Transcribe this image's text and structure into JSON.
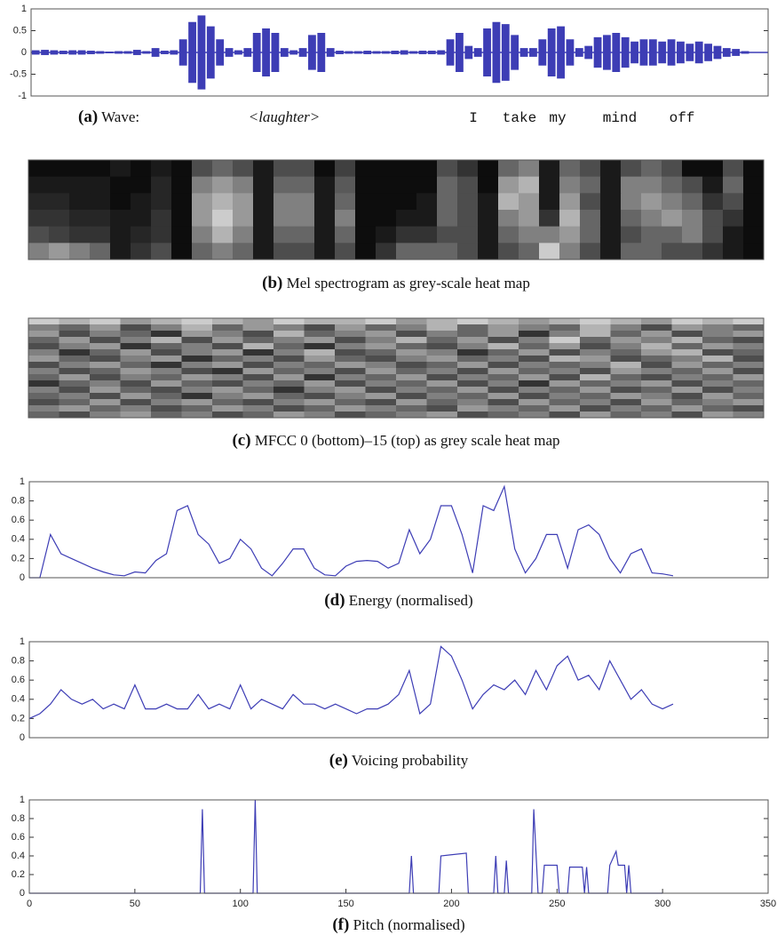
{
  "chart_data": [
    {
      "type": "wave",
      "label": "(a)",
      "title": "Wave:",
      "color": "#3d3db5",
      "ylim": [
        -1,
        1
      ],
      "yticks": [
        -1,
        -0.5,
        0,
        0.5,
        1
      ],
      "annotations": [
        "<laughter>",
        "I",
        "take",
        "my",
        "mind",
        "off"
      ],
      "values": [
        0.05,
        0.06,
        0.05,
        0.04,
        0.05,
        0.05,
        0.04,
        0.03,
        0.02,
        0.03,
        0.03,
        0.06,
        0.03,
        0.1,
        0.04,
        0.05,
        0.3,
        0.7,
        0.85,
        0.6,
        0.3,
        0.1,
        0.05,
        0.1,
        0.45,
        0.55,
        0.45,
        0.1,
        0.05,
        0.1,
        0.4,
        0.45,
        0.1,
        0.04,
        0.03,
        0.03,
        0.04,
        0.03,
        0.03,
        0.04,
        0.05,
        0.03,
        0.04,
        0.04,
        0.05,
        0.3,
        0.45,
        0.15,
        0.1,
        0.55,
        0.7,
        0.65,
        0.4,
        0.1,
        0.1,
        0.3,
        0.55,
        0.6,
        0.3,
        0.1,
        0.15,
        0.35,
        0.4,
        0.45,
        0.35,
        0.25,
        0.3,
        0.3,
        0.25,
        0.3,
        0.25,
        0.2,
        0.25,
        0.2,
        0.15,
        0.1,
        0.08,
        0.03,
        0,
        0
      ]
    },
    {
      "type": "heatmap",
      "label": "(b)",
      "title": "Mel spectrogram as grey-scale heat map",
      "values": [
        [
          0.05,
          0.05,
          0.05,
          0.05,
          0.1,
          0.05,
          0.1,
          0.05,
          0.3,
          0.4,
          0.3,
          0.1,
          0.3,
          0.3,
          0.05,
          0.25,
          0.05,
          0.05,
          0.05,
          0.05,
          0.3,
          0.2,
          0.05,
          0.4,
          0.5,
          0.1,
          0.4,
          0.3,
          0.1,
          0.3,
          0.4,
          0.3,
          0.05,
          0.05,
          0.3,
          0.05
        ],
        [
          0.1,
          0.1,
          0.1,
          0.1,
          0.05,
          0.05,
          0.15,
          0.05,
          0.5,
          0.6,
          0.5,
          0.1,
          0.4,
          0.4,
          0.1,
          0.35,
          0.05,
          0.05,
          0.05,
          0.05,
          0.4,
          0.3,
          0.05,
          0.6,
          0.7,
          0.1,
          0.5,
          0.4,
          0.1,
          0.5,
          0.5,
          0.4,
          0.3,
          0.1,
          0.4,
          0.05
        ],
        [
          0.15,
          0.15,
          0.1,
          0.1,
          0.05,
          0.1,
          0.15,
          0.05,
          0.6,
          0.7,
          0.6,
          0.1,
          0.5,
          0.5,
          0.1,
          0.4,
          0.05,
          0.05,
          0.05,
          0.1,
          0.4,
          0.3,
          0.1,
          0.7,
          0.6,
          0.1,
          0.6,
          0.3,
          0.1,
          0.5,
          0.6,
          0.5,
          0.4,
          0.2,
          0.3,
          0.05
        ],
        [
          0.2,
          0.2,
          0.15,
          0.15,
          0.1,
          0.1,
          0.2,
          0.05,
          0.6,
          0.8,
          0.6,
          0.1,
          0.5,
          0.5,
          0.1,
          0.5,
          0.05,
          0.05,
          0.1,
          0.1,
          0.4,
          0.3,
          0.1,
          0.5,
          0.6,
          0.2,
          0.7,
          0.4,
          0.1,
          0.4,
          0.5,
          0.6,
          0.5,
          0.3,
          0.2,
          0.05
        ],
        [
          0.3,
          0.25,
          0.2,
          0.2,
          0.1,
          0.15,
          0.2,
          0.05,
          0.5,
          0.7,
          0.5,
          0.1,
          0.4,
          0.4,
          0.1,
          0.4,
          0.05,
          0.1,
          0.2,
          0.2,
          0.3,
          0.3,
          0.1,
          0.4,
          0.5,
          0.5,
          0.6,
          0.4,
          0.1,
          0.3,
          0.4,
          0.4,
          0.5,
          0.3,
          0.1,
          0.05
        ],
        [
          0.5,
          0.6,
          0.5,
          0.4,
          0.1,
          0.2,
          0.3,
          0.05,
          0.4,
          0.5,
          0.4,
          0.1,
          0.3,
          0.3,
          0.1,
          0.3,
          0.05,
          0.2,
          0.4,
          0.4,
          0.4,
          0.3,
          0.1,
          0.3,
          0.4,
          0.8,
          0.5,
          0.3,
          0.1,
          0.4,
          0.4,
          0.3,
          0.3,
          0.2,
          0.1,
          0.05
        ]
      ]
    },
    {
      "type": "heatmap",
      "label": "(c)",
      "title": "MFCC 0 (bottom)–15 (top) as grey scale heat map",
      "values": [
        [
          0.8,
          0.7,
          0.8,
          0.6,
          0.7,
          0.8,
          0.7,
          0.6,
          0.8,
          0.7,
          0.7,
          0.8,
          0.6,
          0.7,
          0.8,
          0.7,
          0.6,
          0.7,
          0.8,
          0.7,
          0.6,
          0.8,
          0.7,
          0.8
        ],
        [
          0.5,
          0.4,
          0.6,
          0.3,
          0.5,
          0.7,
          0.4,
          0.6,
          0.5,
          0.3,
          0.6,
          0.4,
          0.5,
          0.7,
          0.4,
          0.6,
          0.5,
          0.4,
          0.7,
          0.5,
          0.3,
          0.6,
          0.5,
          0.4
        ],
        [
          0.6,
          0.3,
          0.5,
          0.4,
          0.2,
          0.6,
          0.5,
          0.3,
          0.7,
          0.4,
          0.5,
          0.6,
          0.3,
          0.5,
          0.4,
          0.6,
          0.2,
          0.5,
          0.7,
          0.4,
          0.6,
          0.3,
          0.5,
          0.6
        ],
        [
          0.4,
          0.6,
          0.3,
          0.5,
          0.7,
          0.3,
          0.6,
          0.4,
          0.5,
          0.6,
          0.3,
          0.5,
          0.7,
          0.4,
          0.6,
          0.3,
          0.5,
          0.8,
          0.4,
          0.6,
          0.5,
          0.7,
          0.4,
          0.3
        ],
        [
          0.3,
          0.5,
          0.6,
          0.2,
          0.4,
          0.5,
          0.3,
          0.7,
          0.4,
          0.2,
          0.5,
          0.6,
          0.4,
          0.3,
          0.5,
          0.7,
          0.4,
          0.6,
          0.3,
          0.5,
          0.7,
          0.4,
          0.6,
          0.5
        ],
        [
          0.5,
          0.2,
          0.4,
          0.6,
          0.3,
          0.5,
          0.6,
          0.2,
          0.5,
          0.7,
          0.3,
          0.4,
          0.6,
          0.5,
          0.2,
          0.4,
          0.6,
          0.3,
          0.5,
          0.4,
          0.6,
          0.7,
          0.3,
          0.4
        ],
        [
          0.6,
          0.4,
          0.3,
          0.5,
          0.6,
          0.2,
          0.4,
          0.5,
          0.3,
          0.6,
          0.4,
          0.3,
          0.5,
          0.6,
          0.4,
          0.5,
          0.3,
          0.7,
          0.6,
          0.3,
          0.4,
          0.5,
          0.7,
          0.3
        ],
        [
          0.3,
          0.5,
          0.6,
          0.4,
          0.2,
          0.5,
          0.6,
          0.3,
          0.5,
          0.4,
          0.6,
          0.5,
          0.3,
          0.4,
          0.6,
          0.3,
          0.5,
          0.4,
          0.5,
          0.7,
          0.3,
          0.6,
          0.4,
          0.5
        ],
        [
          0.5,
          0.3,
          0.4,
          0.6,
          0.5,
          0.3,
          0.2,
          0.6,
          0.4,
          0.5,
          0.3,
          0.6,
          0.4,
          0.5,
          0.3,
          0.6,
          0.4,
          0.5,
          0.3,
          0.6,
          0.5,
          0.4,
          0.6,
          0.3
        ],
        [
          0.4,
          0.6,
          0.3,
          0.5,
          0.4,
          0.6,
          0.5,
          0.3,
          0.6,
          0.2,
          0.5,
          0.4,
          0.6,
          0.3,
          0.5,
          0.4,
          0.6,
          0.3,
          0.7,
          0.4,
          0.3,
          0.5,
          0.4,
          0.6
        ],
        [
          0.2,
          0.4,
          0.5,
          0.3,
          0.6,
          0.4,
          0.3,
          0.5,
          0.4,
          0.6,
          0.3,
          0.5,
          0.4,
          0.6,
          0.3,
          0.5,
          0.2,
          0.6,
          0.4,
          0.5,
          0.6,
          0.3,
          0.5,
          0.4
        ],
        [
          0.5,
          0.3,
          0.6,
          0.4,
          0.3,
          0.5,
          0.6,
          0.4,
          0.2,
          0.5,
          0.6,
          0.3,
          0.5,
          0.4,
          0.6,
          0.3,
          0.5,
          0.4,
          0.6,
          0.3,
          0.4,
          0.6,
          0.3,
          0.5
        ],
        [
          0.4,
          0.5,
          0.3,
          0.6,
          0.4,
          0.2,
          0.5,
          0.6,
          0.4,
          0.3,
          0.5,
          0.6,
          0.3,
          0.5,
          0.4,
          0.6,
          0.3,
          0.5,
          0.4,
          0.6,
          0.5,
          0.3,
          0.6,
          0.4
        ],
        [
          0.3,
          0.4,
          0.6,
          0.3,
          0.5,
          0.6,
          0.4,
          0.3,
          0.5,
          0.6,
          0.4,
          0.3,
          0.6,
          0.4,
          0.5,
          0.3,
          0.6,
          0.4,
          0.5,
          0.3,
          0.6,
          0.4,
          0.5,
          0.6
        ],
        [
          0.5,
          0.6,
          0.4,
          0.5,
          0.3,
          0.4,
          0.6,
          0.5,
          0.3,
          0.4,
          0.6,
          0.5,
          0.4,
          0.3,
          0.6,
          0.5,
          0.4,
          0.6,
          0.3,
          0.5,
          0.4,
          0.6,
          0.4,
          0.3
        ],
        [
          0.4,
          0.3,
          0.5,
          0.6,
          0.4,
          0.5,
          0.3,
          0.4,
          0.6,
          0.5,
          0.3,
          0.4,
          0.5,
          0.6,
          0.3,
          0.4,
          0.5,
          0.3,
          0.6,
          0.4,
          0.5,
          0.3,
          0.6,
          0.5
        ]
      ]
    },
    {
      "type": "line",
      "label": "(d)",
      "title": "Energy (normalised)",
      "color": "#3d3db5",
      "xlim": [
        0,
        350
      ],
      "ylim": [
        0,
        1
      ],
      "yticks": [
        0,
        0.2,
        0.4,
        0.6,
        0.8,
        1
      ],
      "x": [
        0,
        5,
        10,
        15,
        20,
        25,
        30,
        35,
        40,
        45,
        50,
        55,
        60,
        65,
        70,
        75,
        80,
        85,
        90,
        95,
        100,
        105,
        110,
        115,
        120,
        125,
        130,
        135,
        140,
        145,
        150,
        155,
        160,
        165,
        170,
        175,
        180,
        185,
        190,
        195,
        200,
        205,
        210,
        215,
        220,
        225,
        230,
        235,
        240,
        245,
        250,
        255,
        260,
        265,
        270,
        275,
        280,
        285,
        290,
        295,
        300,
        305
      ],
      "values": [
        0,
        0,
        0.45,
        0.25,
        0.2,
        0.15,
        0.1,
        0.06,
        0.03,
        0.02,
        0.06,
        0.05,
        0.18,
        0.25,
        0.7,
        0.75,
        0.45,
        0.35,
        0.15,
        0.2,
        0.4,
        0.3,
        0.1,
        0.02,
        0.15,
        0.3,
        0.3,
        0.1,
        0.03,
        0.02,
        0.12,
        0.17,
        0.18,
        0.17,
        0.1,
        0.15,
        0.5,
        0.25,
        0.4,
        0.75,
        0.75,
        0.45,
        0.05,
        0.75,
        0.7,
        0.95,
        0.3,
        0.05,
        0.2,
        0.45,
        0.45,
        0.1,
        0.5,
        0.55,
        0.45,
        0.2,
        0.05,
        0.25,
        0.3,
        0.05,
        0.04,
        0.02
      ]
    },
    {
      "type": "line",
      "label": "(e)",
      "title": "Voicing probability",
      "color": "#3d3db5",
      "xlim": [
        0,
        350
      ],
      "ylim": [
        0,
        1
      ],
      "yticks": [
        0,
        0.2,
        0.4,
        0.6,
        0.8,
        1
      ],
      "x": [
        0,
        5,
        10,
        15,
        20,
        25,
        30,
        35,
        40,
        45,
        50,
        55,
        60,
        65,
        70,
        75,
        80,
        85,
        90,
        95,
        100,
        105,
        110,
        115,
        120,
        125,
        130,
        135,
        140,
        145,
        150,
        155,
        160,
        165,
        170,
        175,
        180,
        185,
        190,
        195,
        200,
        205,
        210,
        215,
        220,
        225,
        230,
        235,
        240,
        245,
        250,
        255,
        260,
        265,
        270,
        275,
        280,
        285,
        290,
        295,
        300,
        305
      ],
      "values": [
        0.2,
        0.25,
        0.35,
        0.5,
        0.4,
        0.35,
        0.4,
        0.3,
        0.35,
        0.3,
        0.55,
        0.3,
        0.3,
        0.35,
        0.3,
        0.3,
        0.45,
        0.3,
        0.35,
        0.3,
        0.55,
        0.3,
        0.4,
        0.35,
        0.3,
        0.45,
        0.35,
        0.35,
        0.3,
        0.35,
        0.3,
        0.25,
        0.3,
        0.3,
        0.35,
        0.45,
        0.7,
        0.25,
        0.35,
        0.95,
        0.85,
        0.6,
        0.3,
        0.45,
        0.55,
        0.5,
        0.6,
        0.45,
        0.7,
        0.5,
        0.75,
        0.85,
        0.6,
        0.65,
        0.5,
        0.8,
        0.6,
        0.4,
        0.5,
        0.35,
        0.3,
        0.35
      ]
    },
    {
      "type": "line",
      "label": "(f)",
      "title": "Pitch (normalised)",
      "color": "#3d3db5",
      "xlim": [
        0,
        350
      ],
      "ylim": [
        0,
        1
      ],
      "yticks": [
        0,
        0.2,
        0.4,
        0.6,
        0.8,
        1
      ],
      "xticks": [
        0,
        50,
        100,
        150,
        200,
        250,
        300,
        350
      ],
      "x": [
        0,
        81,
        82,
        83,
        106,
        107,
        108,
        180,
        181,
        182,
        194,
        195,
        207,
        208,
        220,
        221,
        222,
        225,
        226,
        227,
        238,
        239,
        241,
        243,
        244,
        250,
        251,
        255,
        256,
        262,
        263,
        264,
        265,
        274,
        275,
        278,
        279,
        282,
        283,
        284,
        285,
        300
      ],
      "values": [
        0,
        0,
        0.9,
        0,
        0,
        1,
        0,
        0,
        0.4,
        0,
        0,
        0.4,
        0.43,
        0,
        0,
        0.4,
        0,
        0,
        0.35,
        0,
        0,
        0.9,
        0,
        0,
        0.3,
        0.3,
        0,
        0,
        0.28,
        0.28,
        0,
        0.28,
        0,
        0,
        0.3,
        0.45,
        0.3,
        0.3,
        0,
        0.3,
        0,
        0
      ]
    }
  ]
}
